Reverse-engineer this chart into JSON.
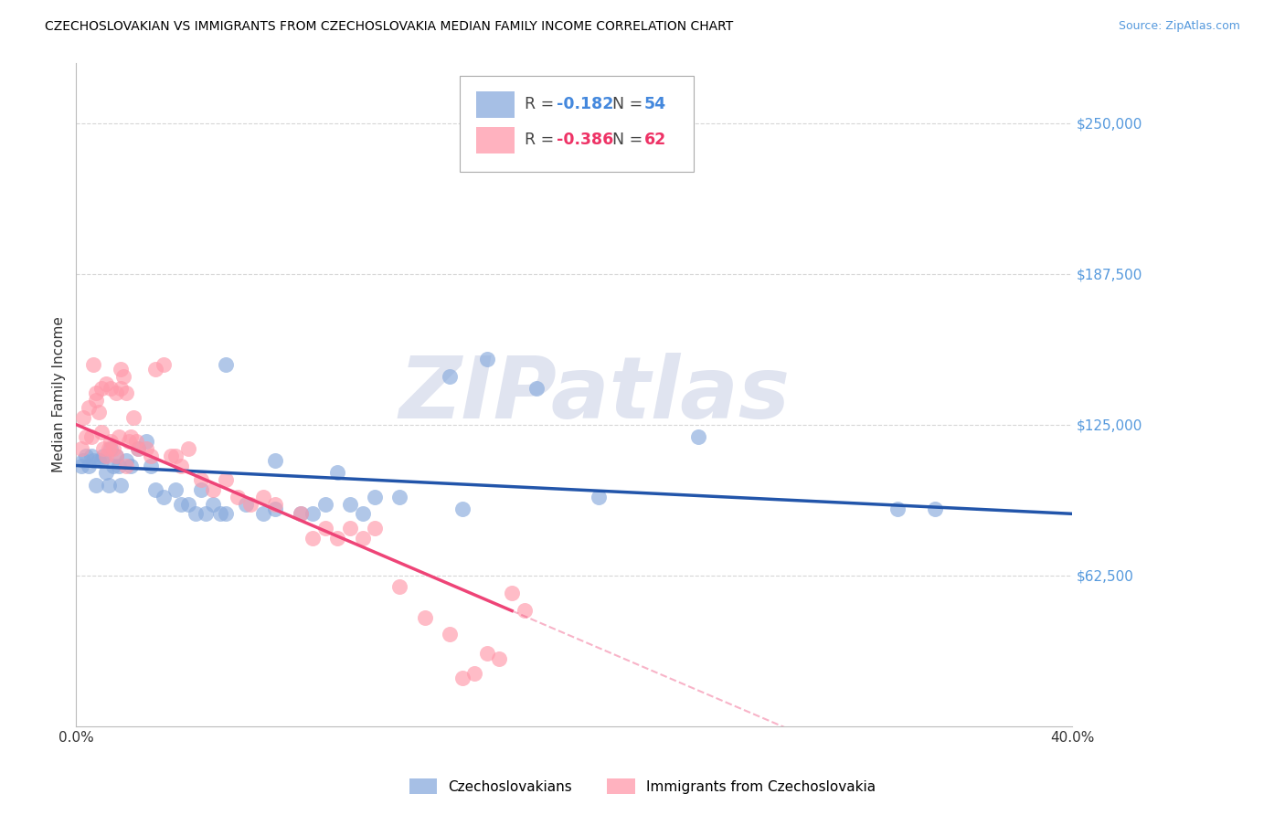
{
  "title": "CZECHOSLOVAKIAN VS IMMIGRANTS FROM CZECHOSLOVAKIA MEDIAN FAMILY INCOME CORRELATION CHART",
  "source": "Source: ZipAtlas.com",
  "ylabel": "Median Family Income",
  "xlim": [
    0.0,
    0.4
  ],
  "ylim": [
    0,
    275000
  ],
  "yticks": [
    62500,
    125000,
    187500,
    250000
  ],
  "ytick_labels": [
    "$62,500",
    "$125,000",
    "$187,500",
    "$250,000"
  ],
  "xticks": [
    0.0,
    0.05,
    0.1,
    0.15,
    0.2,
    0.25,
    0.3,
    0.35,
    0.4
  ],
  "blue_color": "#88AADD",
  "pink_color": "#FF99AA",
  "blue_line_color": "#2255AA",
  "pink_line_color": "#EE4477",
  "grid_color": "#CCCCCC",
  "watermark": "ZIPatlas",
  "watermark_color": "#E0E4F0",
  "legend_r_blue": "-0.182",
  "legend_n_blue": "54",
  "legend_r_pink": "-0.386",
  "legend_n_pink": "62",
  "label_blue": "Czechoslovakians",
  "label_pink": "Immigrants from Czechoslovakia",
  "blue_x": [
    0.002,
    0.003,
    0.004,
    0.005,
    0.006,
    0.007,
    0.008,
    0.009,
    0.01,
    0.011,
    0.012,
    0.013,
    0.014,
    0.015,
    0.016,
    0.017,
    0.018,
    0.02,
    0.022,
    0.025,
    0.028,
    0.03,
    0.032,
    0.035,
    0.04,
    0.042,
    0.045,
    0.048,
    0.05,
    0.052,
    0.055,
    0.058,
    0.06,
    0.068,
    0.075,
    0.08,
    0.09,
    0.095,
    0.1,
    0.11,
    0.115,
    0.12,
    0.15,
    0.165,
    0.185,
    0.21,
    0.25,
    0.345,
    0.06,
    0.08,
    0.105,
    0.13,
    0.155,
    0.33
  ],
  "blue_y": [
    108000,
    110000,
    112000,
    108000,
    112000,
    110000,
    100000,
    110000,
    110000,
    112000,
    105000,
    100000,
    115000,
    108000,
    112000,
    108000,
    100000,
    110000,
    108000,
    115000,
    118000,
    108000,
    98000,
    95000,
    98000,
    92000,
    92000,
    88000,
    98000,
    88000,
    92000,
    88000,
    88000,
    92000,
    88000,
    90000,
    88000,
    88000,
    92000,
    92000,
    88000,
    95000,
    145000,
    152000,
    140000,
    95000,
    120000,
    90000,
    150000,
    110000,
    105000,
    95000,
    90000,
    90000
  ],
  "pink_x": [
    0.002,
    0.003,
    0.004,
    0.005,
    0.006,
    0.007,
    0.008,
    0.009,
    0.01,
    0.011,
    0.012,
    0.013,
    0.014,
    0.015,
    0.016,
    0.017,
    0.018,
    0.019,
    0.02,
    0.021,
    0.022,
    0.023,
    0.024,
    0.025,
    0.028,
    0.03,
    0.032,
    0.035,
    0.038,
    0.04,
    0.042,
    0.045,
    0.05,
    0.055,
    0.06,
    0.065,
    0.07,
    0.075,
    0.08,
    0.09,
    0.1,
    0.11,
    0.12,
    0.13,
    0.14,
    0.15,
    0.155,
    0.16,
    0.175,
    0.18,
    0.105,
    0.115,
    0.095,
    0.008,
    0.01,
    0.012,
    0.014,
    0.016,
    0.018,
    0.02,
    0.165,
    0.17
  ],
  "pink_y": [
    115000,
    128000,
    120000,
    132000,
    120000,
    150000,
    135000,
    130000,
    122000,
    115000,
    112000,
    115000,
    118000,
    115000,
    112000,
    120000,
    148000,
    145000,
    108000,
    118000,
    120000,
    128000,
    118000,
    115000,
    115000,
    112000,
    148000,
    150000,
    112000,
    112000,
    108000,
    115000,
    102000,
    98000,
    102000,
    95000,
    92000,
    95000,
    92000,
    88000,
    82000,
    82000,
    82000,
    58000,
    45000,
    38000,
    20000,
    22000,
    55000,
    48000,
    78000,
    78000,
    78000,
    138000,
    140000,
    142000,
    140000,
    138000,
    140000,
    138000,
    30000,
    28000
  ]
}
